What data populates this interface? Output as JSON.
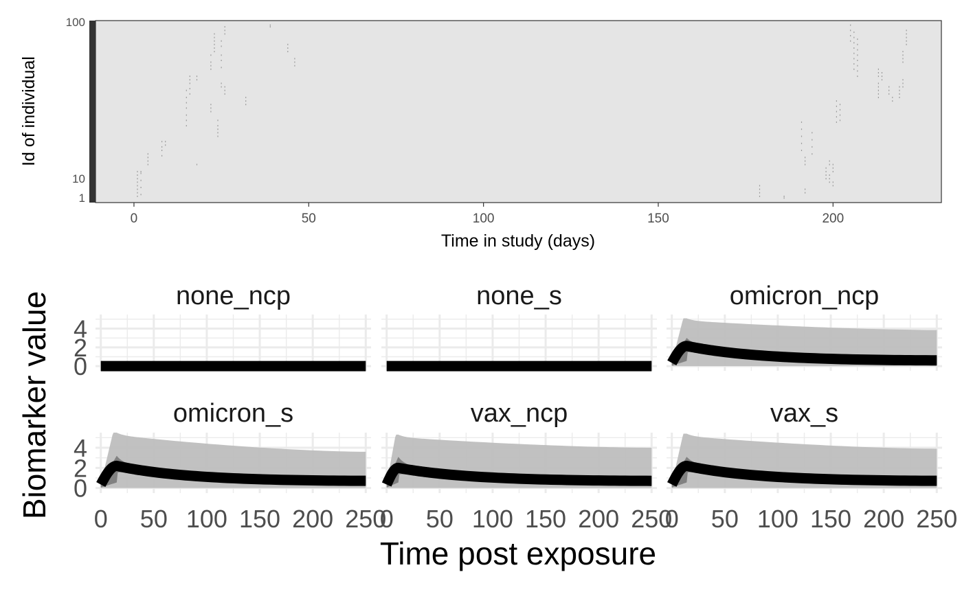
{
  "chart_data": [
    {
      "type": "scatter",
      "title": "",
      "xlabel": "Time in study (days)",
      "ylabel": "Id of individual",
      "xlim": [
        -11,
        231
      ],
      "ylim": [
        0,
        100
      ],
      "x_ticks": [
        0,
        50,
        100,
        150,
        200
      ],
      "y_ticks_visible": [
        "100",
        "10",
        "1"
      ],
      "grid": false,
      "legend": "none",
      "panel_color": "#e5e5e5",
      "point_color": "#9a9a9a",
      "clusters": [
        {
          "x": 1,
          "ids": [
            2,
            4,
            6,
            8,
            10,
            12,
            14,
            16
          ]
        },
        {
          "x": 2,
          "ids": [
            3,
            7,
            11,
            15,
            16
          ]
        },
        {
          "x": 4,
          "ids": [
            20,
            22,
            24,
            26
          ]
        },
        {
          "x": 8,
          "ids": [
            25,
            28,
            30,
            33
          ]
        },
        {
          "x": 9,
          "ids": [
            31,
            33
          ]
        },
        {
          "x": 15,
          "ids": [
            42,
            45,
            48,
            52,
            55,
            58,
            62
          ]
        },
        {
          "x": 16,
          "ids": [
            60,
            63,
            66,
            68,
            70
          ]
        },
        {
          "x": 18,
          "ids": [
            20,
            68,
            70
          ]
        },
        {
          "x": 22,
          "ids": [
            50,
            52,
            54,
            74,
            76,
            78,
            82
          ]
        },
        {
          "x": 23,
          "ids": [
            84,
            86,
            88,
            90,
            92,
            94
          ]
        },
        {
          "x": 24,
          "ids": [
            36,
            38,
            40,
            42,
            45
          ]
        },
        {
          "x": 25,
          "ids": [
            64,
            66,
            75,
            79,
            82,
            87,
            90
          ]
        },
        {
          "x": 26,
          "ids": [
            60,
            62,
            64,
            94,
            96,
            98
          ]
        },
        {
          "x": 32,
          "ids": [
            54,
            56,
            58
          ]
        },
        {
          "x": 39,
          "ids": [
            98,
            99
          ]
        },
        {
          "x": 44,
          "ids": [
            84,
            86,
            88
          ]
        },
        {
          "x": 46,
          "ids": [
            76,
            78,
            80
          ]
        },
        {
          "x": 179,
          "ids": [
            2,
            4,
            6,
            8
          ]
        },
        {
          "x": 186,
          "ids": [
            1,
            2
          ]
        },
        {
          "x": 191,
          "ids": [
            28,
            32,
            36,
            40,
            44
          ]
        },
        {
          "x": 192,
          "ids": [
            4,
            6,
            20,
            22,
            24
          ]
        },
        {
          "x": 194,
          "ids": [
            26,
            30,
            34,
            38
          ]
        },
        {
          "x": 198,
          "ids": [
            12,
            14,
            16,
            18
          ]
        },
        {
          "x": 199,
          "ids": [
            10,
            12,
            14,
            20,
            22
          ]
        },
        {
          "x": 200,
          "ids": [
            8,
            10,
            16,
            18,
            20
          ]
        },
        {
          "x": 201,
          "ids": [
            44,
            47,
            50,
            53,
            56
          ]
        },
        {
          "x": 202,
          "ids": [
            45,
            48,
            51,
            54
          ]
        },
        {
          "x": 205,
          "ids": [
            90,
            93,
            96,
            99
          ]
        },
        {
          "x": 206,
          "ids": [
            74,
            77,
            80,
            83,
            86,
            89,
            92,
            95
          ]
        },
        {
          "x": 207,
          "ids": [
            70,
            73,
            76,
            79,
            82,
            85,
            88,
            91
          ]
        },
        {
          "x": 213,
          "ids": [
            58,
            60,
            62,
            64,
            66,
            70,
            72,
            74
          ]
        },
        {
          "x": 214,
          "ids": [
            68,
            70,
            72
          ]
        },
        {
          "x": 216,
          "ids": [
            60,
            62,
            64
          ]
        },
        {
          "x": 217,
          "ids": [
            56,
            58
          ]
        },
        {
          "x": 219,
          "ids": [
            58,
            60,
            62,
            64
          ]
        },
        {
          "x": 220,
          "ids": [
            64,
            66,
            68,
            78,
            80,
            82,
            84
          ]
        },
        {
          "x": 221,
          "ids": [
            88,
            90,
            92,
            94,
            96
          ]
        }
      ]
    },
    {
      "type": "area",
      "facet": true,
      "xlabel": "Time post exposure",
      "ylabel": "Biomarker value",
      "xlim": [
        -5,
        255
      ],
      "ylim": [
        -0.5,
        5.5
      ],
      "x_ticks": [
        0,
        50,
        100,
        150,
        200,
        250
      ],
      "x_tick_labels": [
        "0",
        "50",
        "100",
        "150",
        "200",
        "250"
      ],
      "y_ticks": [
        0,
        2,
        4
      ],
      "y_tick_labels": [
        "0",
        "2",
        "4"
      ],
      "grid": true,
      "legend": "none",
      "colors": {
        "outer_ribbon": "#bebebe",
        "inner_ribbon": "#7a7a7a",
        "median_line": "#000000",
        "gridline": "#ebebeb"
      },
      "panels": [
        {
          "name": "none_ncp",
          "flat": true
        },
        {
          "name": "none_s",
          "flat": true
        },
        {
          "name": "omicron_ncp",
          "peak_day": 14,
          "peak_value": 2.15,
          "end_value": 0.6,
          "upper_peak": 5.1,
          "upper_end": 3.85,
          "inner_peak": 3.0
        },
        {
          "name": "omicron_s",
          "peak_day": 15,
          "peak_value": 2.2,
          "end_value": 0.7,
          "upper_peak": 5.5,
          "upper_end": 3.6,
          "inner_peak": 3.2
        },
        {
          "name": "vax_ncp",
          "peak_day": 11,
          "peak_value": 2.0,
          "end_value": 0.7,
          "upper_peak": 5.3,
          "upper_end": 4.0,
          "inner_peak": 3.1
        },
        {
          "name": "vax_s",
          "peak_day": 14,
          "peak_value": 2.2,
          "end_value": 0.7,
          "upper_peak": 5.4,
          "upper_end": 3.9,
          "inner_peak": 3.1
        }
      ]
    }
  ]
}
